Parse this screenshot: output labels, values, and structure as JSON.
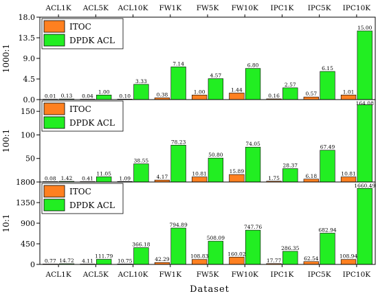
{
  "chart_data": {
    "type": "bar",
    "xlabel": "Dataset",
    "categories": [
      "ACL1K",
      "ACL5K",
      "ACL10K",
      "FW1K",
      "FW5K",
      "FW10K",
      "IPC1K",
      "IPC5K",
      "IPC10K"
    ],
    "colors": {
      "ITOC": "#ff8020",
      "DPDK ACL": "#22ee22"
    },
    "legend_position": "top-left",
    "panels": [
      {
        "ylabel": "1000:1",
        "ylim": [
          0,
          18
        ],
        "yticks": [
          "0.0",
          "4.5",
          "9.0",
          "13.5",
          "18.0"
        ],
        "series": [
          {
            "name": "ITOC",
            "values": [
              0.01,
              0.04,
              0.1,
              0.38,
              1.0,
              1.44,
              0.16,
              0.57,
              1.01
            ],
            "labels": [
              "0.01",
              "0.04",
              "0.10",
              "0.38",
              "1.00",
              "1.44",
              "0.16",
              "0.57",
              "1.01"
            ]
          },
          {
            "name": "DPDK ACL",
            "values": [
              0.13,
              1.0,
              3.33,
              7.14,
              4.57,
              6.8,
              2.57,
              6.15,
              15.0
            ],
            "labels": [
              "0.13",
              "1.00",
              "3.33",
              "7.14",
              "4.57",
              "6.80",
              "2.57",
              "6.15",
              "15.00"
            ]
          }
        ]
      },
      {
        "ylabel": "100:1",
        "ylim": [
          0,
          175
        ],
        "yticks": [
          "0",
          "50",
          "100",
          "150"
        ],
        "series": [
          {
            "name": "ITOC",
            "values": [
              0.08,
              0.41,
              1.09,
              4.17,
              10.81,
              15.89,
              1.75,
              6.18,
              10.81
            ],
            "labels": [
              "0.08",
              "0.41",
              "1.09",
              "4.17",
              "10.81",
              "15.89",
              "1.75",
              "6.18",
              "10.81"
            ]
          },
          {
            "name": "DPDK ACL",
            "values": [
              1.42,
              11.05,
              38.55,
              78.23,
              50.8,
              74.05,
              28.37,
              67.49,
              164.08
            ],
            "labels": [
              "1.42",
              "11.05",
              "38.55",
              "78.23",
              "50.80",
              "74.05",
              "28.37",
              "67.49",
              "164.08"
            ]
          }
        ]
      },
      {
        "ylabel": "10:1",
        "ylim": [
          0,
          1800
        ],
        "yticks": [
          "0",
          "450",
          "900",
          "1350",
          "1800"
        ],
        "series": [
          {
            "name": "ITOC",
            "values": [
              0.77,
              4.11,
              10.75,
              42.29,
              108.83,
              160.02,
              17.77,
              62.54,
              108.94
            ],
            "labels": [
              "0.77",
              "4.11",
              "10.75",
              "42.29",
              "108.83",
              "160.02",
              "17.77",
              "62.54",
              "108.94"
            ]
          },
          {
            "name": "DPDK ACL",
            "values": [
              14.72,
              111.79,
              366.18,
              794.89,
              508.09,
              747.76,
              286.35,
              682.94,
              1660.49
            ],
            "labels": [
              "14.72",
              "111.79",
              "366.18",
              "794.89",
              "508.09",
              "747.76",
              "286.35",
              "682.94",
              "1660.49"
            ]
          }
        ]
      }
    ]
  }
}
